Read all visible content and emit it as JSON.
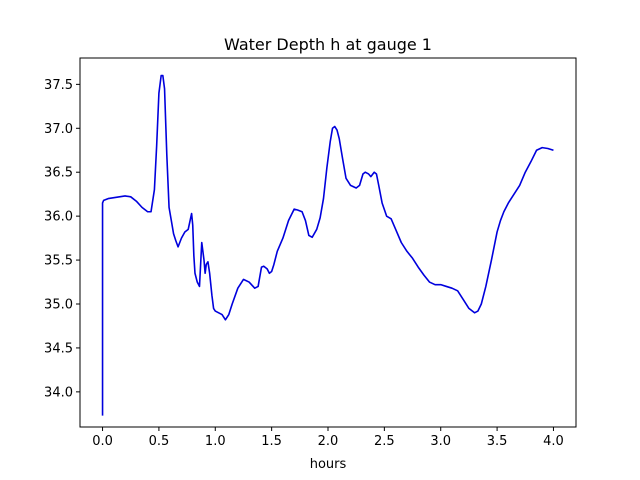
{
  "chart_data": {
    "type": "line",
    "title": "Water Depth h at gauge 1",
    "xlabel": "hours",
    "ylabel": "",
    "xlim": [
      -0.2,
      4.2
    ],
    "ylim": [
      33.6,
      37.8
    ],
    "xticks": [
      0.0,
      0.5,
      1.0,
      1.5,
      2.0,
      2.5,
      3.0,
      3.5,
      4.0
    ],
    "xtick_labels": [
      "0.0",
      "0.5",
      "1.0",
      "1.5",
      "2.0",
      "2.5",
      "3.0",
      "3.5",
      "4.0"
    ],
    "yticks": [
      34.0,
      34.5,
      35.0,
      35.5,
      36.0,
      36.5,
      37.0,
      37.5
    ],
    "ytick_labels": [
      "34.0",
      "34.5",
      "35.0",
      "35.5",
      "36.0",
      "36.5",
      "37.0",
      "37.5"
    ],
    "grid": false,
    "series": [
      {
        "color": "#0000dd",
        "x": [
          0.0,
          0.0,
          0.01,
          0.05,
          0.1,
          0.15,
          0.2,
          0.25,
          0.3,
          0.35,
          0.4,
          0.43,
          0.46,
          0.48,
          0.5,
          0.52,
          0.535,
          0.55,
          0.57,
          0.59,
          0.61,
          0.63,
          0.65,
          0.67,
          0.7,
          0.73,
          0.76,
          0.79,
          0.8,
          0.81,
          0.82,
          0.84,
          0.86,
          0.88,
          0.9,
          0.91,
          0.915,
          0.92,
          0.935,
          0.95,
          0.97,
          0.985,
          1.0,
          1.03,
          1.06,
          1.09,
          1.12,
          1.15,
          1.2,
          1.25,
          1.3,
          1.35,
          1.38,
          1.41,
          1.43,
          1.46,
          1.48,
          1.5,
          1.52,
          1.55,
          1.6,
          1.65,
          1.7,
          1.73,
          1.77,
          1.8,
          1.83,
          1.86,
          1.9,
          1.93,
          1.96,
          1.99,
          2.02,
          2.04,
          2.06,
          2.08,
          2.1,
          2.13,
          2.16,
          2.2,
          2.25,
          2.28,
          2.31,
          2.33,
          2.36,
          2.38,
          2.41,
          2.43,
          2.45,
          2.48,
          2.52,
          2.56,
          2.6,
          2.65,
          2.7,
          2.75,
          2.8,
          2.85,
          2.9,
          2.95,
          3.0,
          3.05,
          3.1,
          3.15,
          3.2,
          3.25,
          3.3,
          3.33,
          3.36,
          3.4,
          3.45,
          3.5,
          3.53,
          3.56,
          3.6,
          3.65,
          3.7,
          3.75,
          3.8,
          3.85,
          3.9,
          3.95,
          4.0
        ],
        "y": [
          33.73,
          36.15,
          36.18,
          36.2,
          36.21,
          36.22,
          36.23,
          36.22,
          36.17,
          36.1,
          36.05,
          36.05,
          36.3,
          36.8,
          37.4,
          37.6,
          37.6,
          37.45,
          36.7,
          36.1,
          35.95,
          35.8,
          35.72,
          35.65,
          35.75,
          35.82,
          35.85,
          36.03,
          35.9,
          35.55,
          35.35,
          35.25,
          35.2,
          35.7,
          35.5,
          35.35,
          35.4,
          35.45,
          35.48,
          35.35,
          35.1,
          34.95,
          34.92,
          34.9,
          34.88,
          34.82,
          34.88,
          35.0,
          35.18,
          35.28,
          35.25,
          35.18,
          35.2,
          35.42,
          35.43,
          35.4,
          35.35,
          35.37,
          35.45,
          35.6,
          35.75,
          35.95,
          36.08,
          36.07,
          36.05,
          35.95,
          35.78,
          35.76,
          35.85,
          35.98,
          36.2,
          36.55,
          36.85,
          37.0,
          37.02,
          36.98,
          36.88,
          36.65,
          36.43,
          36.35,
          36.32,
          36.35,
          36.48,
          36.5,
          36.48,
          36.45,
          36.5,
          36.48,
          36.35,
          36.15,
          36.0,
          35.97,
          35.85,
          35.7,
          35.6,
          35.52,
          35.42,
          35.33,
          35.25,
          35.22,
          35.22,
          35.2,
          35.18,
          35.15,
          35.05,
          34.95,
          34.9,
          34.92,
          35.0,
          35.2,
          35.5,
          35.82,
          35.95,
          36.05,
          36.15,
          36.25,
          36.35,
          36.5,
          36.62,
          36.75,
          36.78,
          36.77,
          36.75
        ]
      }
    ]
  }
}
